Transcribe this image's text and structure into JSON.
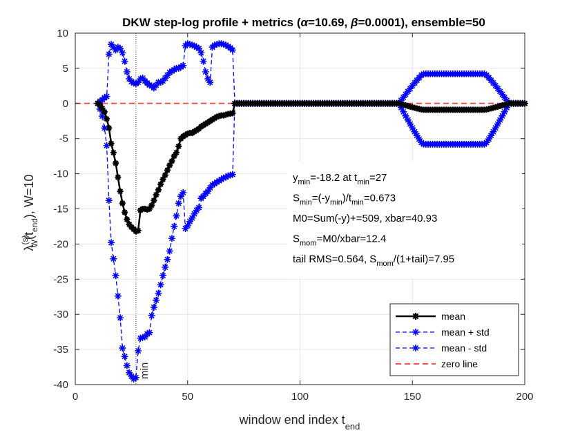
{
  "chart_data": {
    "type": "line",
    "title_parts": [
      "DKW step-log profile + metrics (",
      "α",
      "=10.69, ",
      "β",
      "=0.0001), ensemble=50"
    ],
    "xlabel": "window end index t",
    "xlabel_sub": "end",
    "ylabel_main": "λ",
    "ylabel_sup": "(s)",
    "ylabel_sub": "W",
    "ylabel_rest": "(t",
    "ylabel_rest_sub": "end",
    "ylabel_tail": "),   W=10",
    "xlim": [
      0,
      200
    ],
    "ylim": [
      -40,
      10
    ],
    "xticks": [
      0,
      50,
      100,
      150,
      200
    ],
    "yticks": [
      -40,
      -35,
      -30,
      -25,
      -20,
      -15,
      -10,
      -5,
      0,
      5,
      10
    ],
    "min_marker": {
      "x": 27,
      "label": "min"
    },
    "annotations": [
      [
        {
          "t": "y"
        },
        {
          "t": "min",
          "sub": true
        },
        {
          "t": "=-18.2 at t"
        },
        {
          "t": "min",
          "sub": true
        },
        {
          "t": "=27"
        }
      ],
      [
        {
          "t": "S"
        },
        {
          "t": "min",
          "sub": true
        },
        {
          "t": "=(-y"
        },
        {
          "t": "min",
          "sub": true
        },
        {
          "t": ")/t"
        },
        {
          "t": "min",
          "sub": true
        },
        {
          "t": "=0.673"
        }
      ],
      [
        {
          "t": "M0=Sum(-y)+=509, xbar=40.93"
        }
      ],
      [
        {
          "t": "S"
        },
        {
          "t": "mom",
          "sub": true
        },
        {
          "t": "=M0/xbar=12.4"
        }
      ],
      [
        {
          "t": "tail RMS=0.564, S"
        },
        {
          "t": "mom",
          "sub": true
        },
        {
          "t": "/(1+tail)=7.95"
        }
      ]
    ],
    "legend": {
      "placement": "bottom-right",
      "entries": [
        "mean",
        "mean + std",
        "mean - std",
        "zero line"
      ]
    },
    "colors": {
      "mean": "#000000",
      "std": "#0000ff",
      "zero": "#ff4d4d",
      "axis": "#262626"
    },
    "series": [
      {
        "name": "mean",
        "x": [
          10,
          11,
          12,
          13,
          14,
          15,
          16,
          17,
          18,
          19,
          20,
          21,
          22,
          23,
          24,
          25,
          26,
          27,
          28,
          29,
          30,
          31,
          32,
          33,
          34,
          35,
          36,
          37,
          38,
          39,
          40,
          41,
          42,
          43,
          44,
          45,
          46,
          47,
          48,
          49,
          50,
          51,
          52,
          53,
          54,
          55,
          56,
          57,
          58,
          59,
          60,
          61,
          62,
          63,
          64,
          65,
          66,
          67,
          68,
          69,
          70,
          71
        ],
        "y": [
          0,
          -0.2,
          -0.7,
          -1.2,
          -2.2,
          -3.5,
          -5.7,
          -7,
          -8.5,
          -10.5,
          -12.5,
          -14.2,
          -15.5,
          -16.5,
          -17.2,
          -17.6,
          -17.9,
          -18.2,
          -18.1,
          -15.2,
          -15,
          -15,
          -15.1,
          -15,
          -14.5,
          -13.8,
          -13,
          -12.3,
          -11.5,
          -10.8,
          -10.2,
          -9.5,
          -8.8,
          -8.2,
          -7.5,
          -7,
          -6.1,
          -5,
          -4.7,
          -4.5,
          -4.3,
          -4.2,
          -4.2,
          -4,
          -3.8,
          -3.6,
          -3.3,
          -3.1,
          -2.9,
          -2.7,
          -2.5,
          -2.3,
          -2.1,
          -1.9,
          -1.8,
          -1.7,
          -1.7,
          -1.6,
          -1.5,
          -1.45,
          -1.4,
          0
        ]
      },
      {
        "name": "mean + std",
        "x": [
          10,
          11,
          12,
          13,
          14,
          15,
          16,
          17,
          18,
          19,
          20,
          21,
          22,
          23,
          24,
          25,
          26,
          27,
          28,
          29,
          30,
          31,
          32,
          33,
          34,
          35,
          36,
          37,
          38,
          39,
          40,
          41,
          42,
          43,
          44,
          45,
          46,
          47,
          48,
          49,
          50,
          51,
          52,
          53,
          54,
          55,
          56,
          57,
          58,
          59,
          60,
          61,
          62,
          63,
          64,
          65,
          66,
          67,
          68,
          69,
          70,
          71
        ],
        "y": [
          0,
          0.3,
          0.5,
          0.8,
          1,
          7,
          8.4,
          8,
          7.6,
          8,
          7.8,
          7.2,
          6,
          4.5,
          3.5,
          3.1,
          2.9,
          2.8,
          3,
          3.5,
          3.6,
          3.2,
          2.9,
          2.6,
          2.5,
          2.2,
          2.6,
          3,
          3,
          3.2,
          3.6,
          4,
          4.4,
          4.6,
          4.8,
          5,
          5,
          5.2,
          5.4,
          8.2,
          8.5,
          8.4,
          8.3,
          8.2,
          8,
          7.8,
          7.2,
          6,
          4.5,
          3.5,
          3,
          8,
          8.3,
          8.4,
          8.5,
          8.5,
          8.4,
          8.3,
          8.1,
          7.9,
          7.6,
          0
        ]
      },
      {
        "name": "mean - std",
        "x": [
          10,
          11,
          12,
          13,
          14,
          15,
          16,
          17,
          18,
          19,
          20,
          21,
          22,
          23,
          24,
          25,
          26,
          27,
          28,
          29,
          30,
          31,
          32,
          33,
          34,
          35,
          36,
          37,
          38,
          39,
          40,
          41,
          42,
          43,
          44,
          45,
          46,
          47,
          48,
          49,
          50,
          51,
          52,
          53,
          54,
          55,
          56,
          57,
          58,
          59,
          60,
          61,
          62,
          63,
          64,
          65,
          66,
          67,
          68,
          69,
          70,
          71
        ],
        "y": [
          0,
          -0.8,
          -1.8,
          -3.5,
          -6,
          -13.8,
          -19.8,
          -22.1,
          -24.5,
          -27.4,
          -30.5,
          -34.8,
          -36,
          -37.3,
          -38.3,
          -38.8,
          -39.2,
          -39,
          -35.2,
          -33.4,
          -33.3,
          -33.2,
          -32.8,
          -32.6,
          -30.2,
          -29,
          -28,
          -27,
          -25.8,
          -24.5,
          -23.3,
          -22.2,
          -21,
          -19.2,
          -17.5,
          -16,
          -14.2,
          -13.2,
          -12.7,
          -17.8,
          -17.4,
          -16.8,
          -16.3,
          -15.7,
          -15.2,
          -14.8,
          -13.5,
          -13.2,
          -12.8,
          -12.5,
          -12,
          -11.6,
          -11.4,
          -11.2,
          -11,
          -10.8,
          -10.6,
          -10.5,
          -10.3,
          -10.2,
          -10.1,
          0
        ]
      }
    ],
    "tail_segment": {
      "x_start": 71,
      "x_end": 200,
      "note_values": {
        "flat_end": 144,
        "bulge_start": 144,
        "bulge_end": 193,
        "mean_dip": -0.9,
        "std_amp_top": 4.2,
        "std_amp_bot": -5.8
      }
    }
  }
}
